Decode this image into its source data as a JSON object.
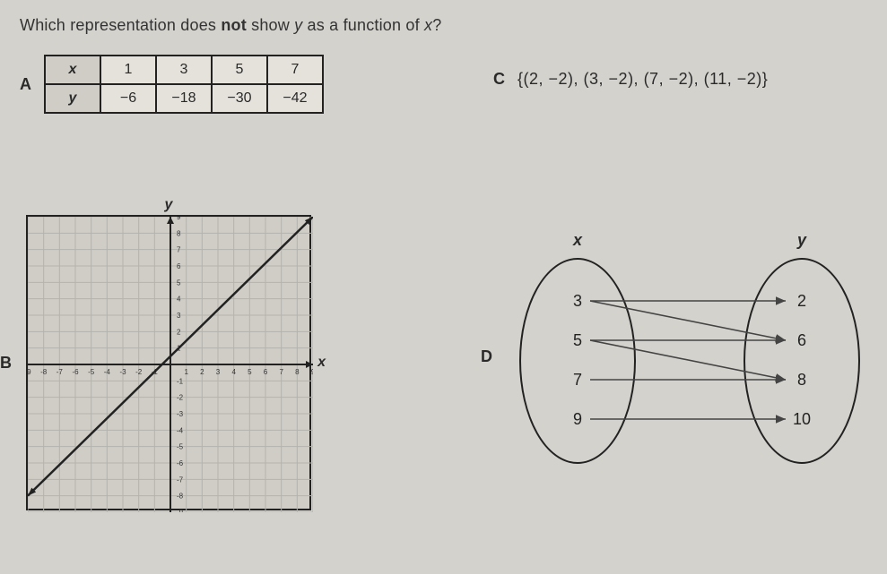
{
  "question": {
    "pre": "Which representation does ",
    "bold": "not",
    "mid": " show ",
    "y": "y",
    "mid2": " as a function of ",
    "x": "x",
    "end": "?"
  },
  "labels": {
    "A": "A",
    "B": "B",
    "C": "C",
    "D": "D"
  },
  "optionA": {
    "xheader": "x",
    "yheader": "y",
    "x": [
      "1",
      "3",
      "5",
      "7"
    ],
    "y": [
      "−6",
      "−18",
      "−30",
      "−42"
    ]
  },
  "optionC": {
    "set": "{(2, −2), (3, −2), (7, −2), (11, −2)}"
  },
  "optionB": {
    "ylabel": "y",
    "xlabel": "x",
    "grid": {
      "xmin": -9,
      "xmax": 9,
      "ymin": -9,
      "ymax": 9,
      "step": 1,
      "grid_color": "#b5b3ac",
      "axis_color": "#222222",
      "line_color": "#222222",
      "bg_color": "#cfcdc6",
      "line_width": 2.5
    },
    "line": {
      "x1": -9,
      "y1": -8,
      "x2": 9,
      "y2": 9
    },
    "xticks": [
      "-9",
      "-8",
      "-7",
      "-6",
      "-5",
      "-4",
      "-3",
      "-2",
      "-1",
      "",
      "1",
      "2",
      "3",
      "4",
      "5",
      "6",
      "7",
      "8",
      "9"
    ],
    "yticks_top": [
      "9",
      "8",
      "7",
      "6",
      "5",
      "4",
      "3",
      "2",
      "1"
    ],
    "yticks_bot": [
      "-1",
      "-2",
      "-3",
      "-4",
      "-5",
      "-6",
      "-7",
      "-8",
      "-9"
    ]
  },
  "optionD": {
    "xlabel": "x",
    "ylabel": "y",
    "left": [
      "3",
      "5",
      "7",
      "9"
    ],
    "right": [
      "2",
      "6",
      "8",
      "10"
    ],
    "edges": [
      {
        "from": 0,
        "to": 0
      },
      {
        "from": 0,
        "to": 1
      },
      {
        "from": 1,
        "to": 1
      },
      {
        "from": 1,
        "to": 2
      },
      {
        "from": 2,
        "to": 2
      },
      {
        "from": 3,
        "to": 3
      }
    ],
    "colors": {
      "border": "#222222",
      "text": "#222222",
      "line": "#444444"
    }
  }
}
